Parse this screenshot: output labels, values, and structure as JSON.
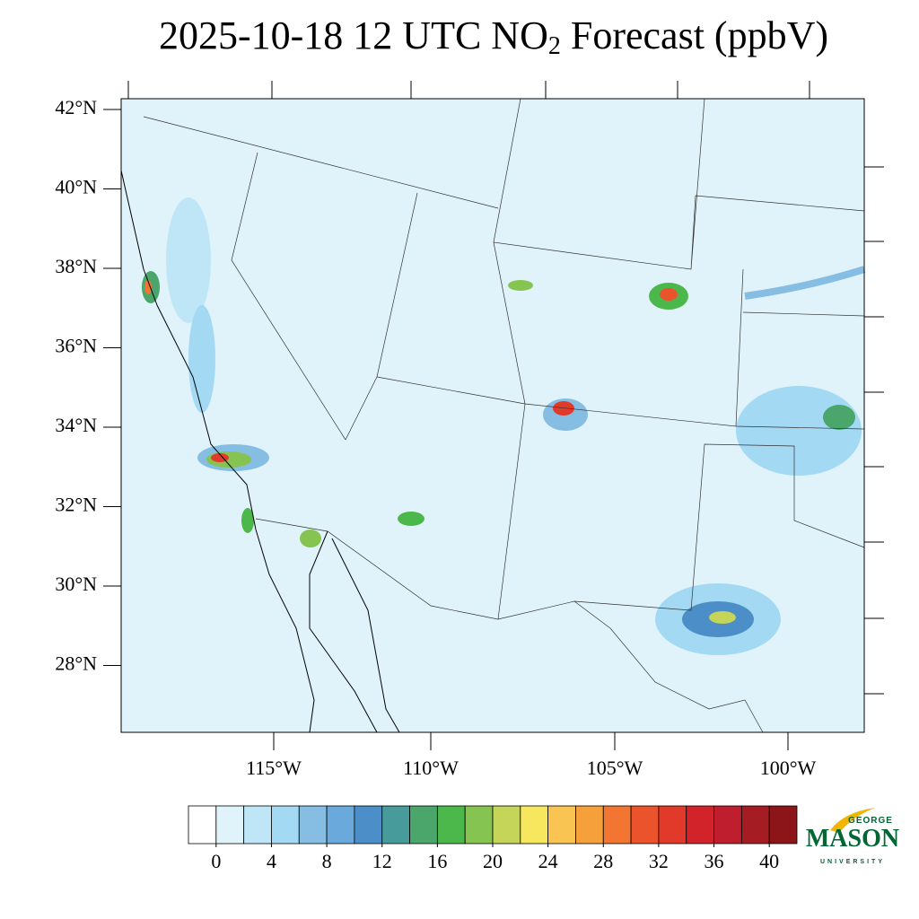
{
  "title": {
    "text": "2025-10-18 12 UTC NO",
    "subscript": "2",
    "rest": " Forecast (ppbV)"
  },
  "map": {
    "lat_labels": [
      "42°N",
      "40°N",
      "38°N",
      "36°N",
      "34°N",
      "32°N",
      "30°N",
      "28°N"
    ],
    "lon_labels": [
      "115°W",
      "110°W",
      "105°W",
      "100°W"
    ]
  },
  "colorbar": {
    "range": [
      -2,
      42
    ],
    "ticks": [
      0,
      4,
      8,
      12,
      16,
      20,
      24,
      28,
      32,
      36,
      40
    ],
    "colors": [
      "#ffffff",
      "#e0f3fb",
      "#bfe6f7",
      "#a3d9f3",
      "#85bde3",
      "#6aa9db",
      "#4b8ec8",
      "#489b9b",
      "#4aa66a",
      "#4cb74a",
      "#86c451",
      "#c4d55a",
      "#f7e75e",
      "#f9c452",
      "#f6a03c",
      "#f37532",
      "#ea532b",
      "#e13a2a",
      "#d2232a",
      "#be1e2d",
      "#a51d22",
      "#8b1519"
    ]
  },
  "logo": {
    "top": "GEORGE",
    "main": "MASON",
    "bottom": "UNIVERSITY"
  }
}
